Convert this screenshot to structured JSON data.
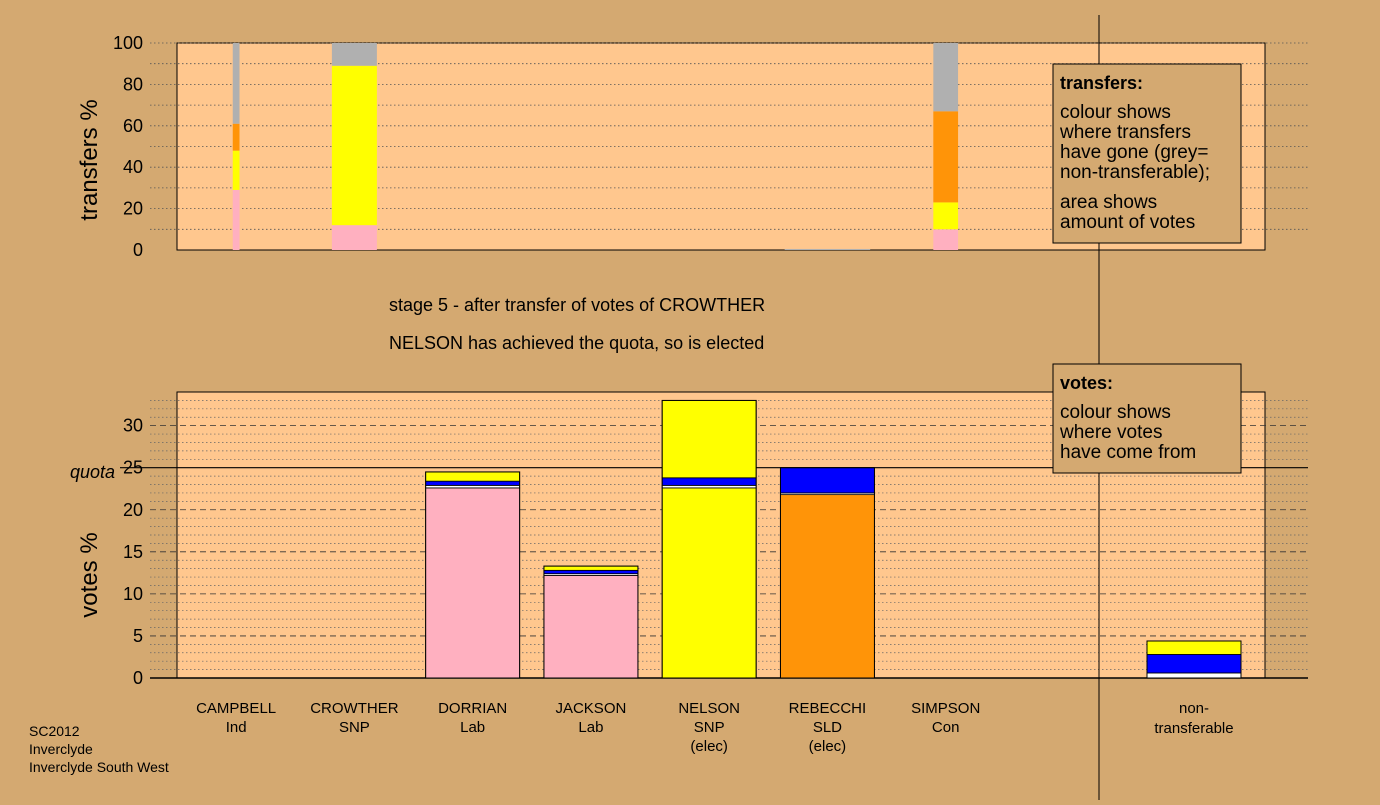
{
  "colors": {
    "background": "#d4a971",
    "plot_area": "#ffc78e",
    "Lab": "#ffb0c0",
    "SNP": "#ffff00",
    "SLD": "#ff9408",
    "Con": "#0000ff",
    "Ind": "#ffffff",
    "non_transferable": "#b0b0b0"
  },
  "caption": {
    "stage": "stage 5 - after transfer of votes of CROWTHER",
    "elected": "NELSON has achieved the quota, so is elected"
  },
  "footer": {
    "line1": "SC2012",
    "line2": "Inverclyde",
    "line3": "Inverclyde South West"
  },
  "transfers_legend": {
    "title": "transfers:",
    "lines": [
      "colour shows",
      "where transfers",
      "have gone (grey=",
      "non-transferable);"
    ],
    "lines2": [
      "area shows",
      "amount of votes"
    ]
  },
  "votes_legend": {
    "title": "votes:",
    "lines": [
      "colour shows",
      "where votes",
      "have come from"
    ]
  },
  "quota_label": "quota",
  "chart_data": [
    {
      "type": "bar",
      "stacked": true,
      "ylabel": "transfers %",
      "ylim": [
        0,
        100
      ],
      "yticks": [
        0,
        20,
        40,
        60,
        80,
        100
      ],
      "grid": "dotted",
      "columns": [
        {
          "category": "CAMPBELL",
          "width_share": 0.15,
          "segments": [
            {
              "party": "Lab",
              "value": 29
            },
            {
              "party": "SNP",
              "value": 19
            },
            {
              "party": "SLD",
              "value": 13
            },
            {
              "party": "non_transferable",
              "value": 39
            }
          ]
        },
        {
          "category": "CROWTHER",
          "width_share": 1.0,
          "segments": [
            {
              "party": "Lab",
              "value": 12
            },
            {
              "party": "SNP",
              "value": 77
            },
            {
              "party": "non_transferable",
              "value": 11
            }
          ]
        },
        {
          "category": "REBECCHI",
          "width_share": 1.9,
          "segments": [
            {
              "party": "non_transferable",
              "value": 0.5
            }
          ]
        },
        {
          "category": "SIMPSON",
          "width_share": 0.55,
          "segments": [
            {
              "party": "Lab",
              "value": 10
            },
            {
              "party": "SNP",
              "value": 13
            },
            {
              "party": "SLD",
              "value": 44
            },
            {
              "party": "non_transferable",
              "value": 33
            }
          ]
        }
      ]
    },
    {
      "type": "bar",
      "stacked": true,
      "ylabel": "votes %",
      "ylim": [
        0,
        34
      ],
      "yticks": [
        0,
        5,
        10,
        15,
        20,
        25,
        30
      ],
      "quota": 25,
      "grid": "dashed",
      "categories": [
        {
          "name": "CAMPBELL",
          "party": "Ind"
        },
        {
          "name": "CROWTHER",
          "party": "SNP"
        },
        {
          "name": "DORRIAN",
          "party": "Lab"
        },
        {
          "name": "JACKSON",
          "party": "Lab"
        },
        {
          "name": "NELSON",
          "party": "SNP",
          "note": "(elec)"
        },
        {
          "name": "REBECCHI",
          "party": "SLD",
          "note": "(elec)"
        },
        {
          "name": "SIMPSON",
          "party": "Con"
        }
      ],
      "stacks": [
        [],
        [],
        [
          {
            "party": "Lab",
            "value": 22.6
          },
          {
            "party": "Ind",
            "value": 0.3
          },
          {
            "party": "Con",
            "value": 0.5
          },
          {
            "party": "SNP",
            "value": 1.1
          }
        ],
        [
          {
            "party": "Lab",
            "value": 12.2
          },
          {
            "party": "Ind",
            "value": 0.2
          },
          {
            "party": "Con",
            "value": 0.4
          },
          {
            "party": "SNP",
            "value": 0.5
          }
        ],
        [
          {
            "party": "SNP",
            "value": 22.6
          },
          {
            "party": "Ind",
            "value": 0.3
          },
          {
            "party": "Con",
            "value": 0.9
          },
          {
            "party": "SNP",
            "value": 9.2
          }
        ],
        [
          {
            "party": "SLD",
            "value": 21.8
          },
          {
            "party": "Ind",
            "value": 0.2
          },
          {
            "party": "Con",
            "value": 3.0
          }
        ],
        []
      ],
      "non_transferable": {
        "label_line1": "non-",
        "label_line2": "transferable",
        "segments": [
          {
            "party": "Ind",
            "value": 0.6
          },
          {
            "party": "Con",
            "value": 2.2
          },
          {
            "party": "SNP",
            "value": 1.6
          }
        ]
      }
    }
  ]
}
